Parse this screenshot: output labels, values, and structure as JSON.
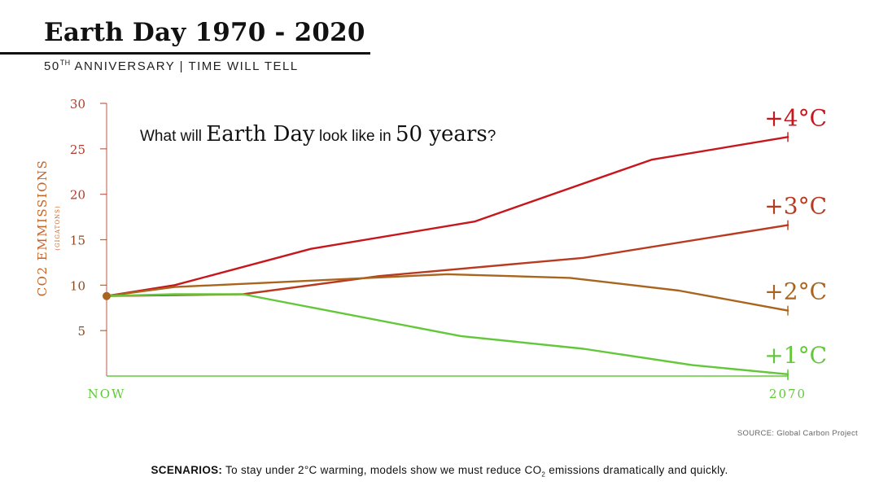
{
  "header": {
    "title": "Earth Day 1970 - 2020",
    "subtitle_prefix": "50",
    "subtitle_sup": "TH",
    "subtitle_rest": " ANNIVERSARY | TIME WILL TELL"
  },
  "colors": {
    "plus4": "#c8161d",
    "plus3": "#b83a1f",
    "plus2": "#a9641e",
    "plus1": "#62c83a",
    "axis_y": "#b33a2a",
    "axis_x": "#62c83a",
    "ylabel": "#c1642a",
    "ticks": "#8a4a20"
  },
  "chart_data": {
    "type": "line",
    "title_parts": [
      "What will ",
      "Earth Day",
      " look like in ",
      "50 years",
      "?"
    ],
    "ylabel": "CO2 EMMISSIONS",
    "ylabel_sub": "(GIGATONS)",
    "xlabel": "",
    "ylim": [
      0,
      30
    ],
    "yticks": [
      5,
      10,
      15,
      20,
      25,
      30
    ],
    "xlim": [
      0,
      50
    ],
    "x_tick_labels": [
      "NOW",
      "2070"
    ],
    "start_point": {
      "x": 0,
      "y": 8.8
    },
    "series": [
      {
        "name": "+4°C",
        "color_key": "plus4",
        "x": [
          0,
          5,
          15,
          27,
          40,
          50
        ],
        "y": [
          8.8,
          10,
          14,
          17,
          23.8,
          26.3
        ]
      },
      {
        "name": "+3°C",
        "color_key": "plus3",
        "x": [
          0,
          10,
          20,
          35,
          50
        ],
        "y": [
          8.8,
          9,
          11,
          13,
          16.6
        ]
      },
      {
        "name": "+2°C",
        "color_key": "plus2",
        "x": [
          0,
          5,
          15,
          25,
          34,
          42,
          50
        ],
        "y": [
          8.8,
          9.8,
          10.5,
          11.2,
          10.8,
          9.4,
          7.2
        ]
      },
      {
        "name": "+1°C",
        "color_key": "plus1",
        "x": [
          0,
          5,
          10,
          26,
          35,
          43,
          50
        ],
        "y": [
          8.8,
          9,
          9,
          4.4,
          3.0,
          1.2,
          0.2
        ]
      }
    ]
  },
  "footer": {
    "source": "SOURCE: Global Carbon Project",
    "scenarios_label": "SCENARIOS:",
    "scenarios_text_a": " To stay under 2°C warming, models show we must reduce CO",
    "scenarios_sub": "2",
    "scenarios_text_b": " emissions dramatically and quickly."
  }
}
